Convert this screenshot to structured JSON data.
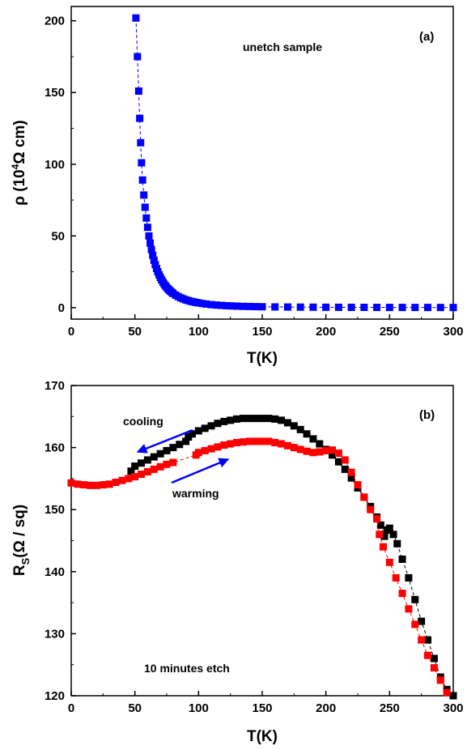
{
  "chart_data": [
    {
      "type": "scatter",
      "panel_label": "(a)",
      "xlabel": "T(K)",
      "ylabel": "ρ (10⁴Ω cm)",
      "ylabel_parts": {
        "prefix": "ρ (10",
        "sup": "4",
        "suffix": "Ω cm)"
      },
      "xlim": [
        0,
        300
      ],
      "ylim": [
        -8,
        210
      ],
      "xticks": [
        0,
        50,
        100,
        150,
        200,
        250,
        300
      ],
      "yticks": [
        0,
        50,
        100,
        150,
        200
      ],
      "grid": false,
      "annotations": [
        {
          "text": "unetch sample"
        }
      ],
      "series": [
        {
          "color": "#0000ff",
          "marker": "square",
          "x": [
            50.8,
            52,
            53,
            53.8,
            54.5,
            55.2,
            56,
            57,
            58,
            59,
            60,
            61,
            62,
            63,
            64,
            65,
            66,
            67,
            68,
            69,
            70,
            71,
            72,
            73,
            74,
            75,
            76,
            77,
            78,
            79,
            80,
            82,
            84,
            86,
            88,
            90,
            92,
            94,
            96,
            98,
            100,
            103,
            106,
            110,
            114,
            118,
            122,
            126,
            130,
            135,
            140,
            145,
            150,
            160,
            170,
            180,
            190,
            200,
            210,
            220,
            230,
            240,
            250,
            260,
            270,
            280,
            290,
            300
          ],
          "y": [
            202,
            175,
            151,
            132,
            115,
            101,
            89,
            78.5,
            70,
            62.5,
            56,
            50,
            45,
            40.5,
            36.5,
            33,
            30,
            27.3,
            25,
            22.9,
            21,
            19.3,
            17.8,
            16.4,
            15.2,
            14.1,
            13.1,
            12.2,
            11.4,
            10.6,
            9.9,
            8.7,
            7.7,
            6.8,
            6.1,
            5.4,
            4.9,
            4.4,
            4,
            3.6,
            3.3,
            2.9,
            2.5,
            2.1,
            1.8,
            1.55,
            1.35,
            1.2,
            1.05,
            0.9,
            0.8,
            0.7,
            0.62,
            0.5,
            0.42,
            0.36,
            0.31,
            0.27,
            0.24,
            0.21,
            0.19,
            0.17,
            0.15,
            0.14,
            0.13,
            0.12,
            0.11,
            0.1
          ]
        }
      ]
    },
    {
      "type": "scatter",
      "panel_label": "(b)",
      "xlabel": "T(K)",
      "ylabel": "RS(Ω / sq)",
      "ylabel_parts": {
        "prefix": "R",
        "sub": "S",
        "suffix": "(Ω / sq)"
      },
      "xlim": [
        0,
        300
      ],
      "ylim": [
        120,
        170
      ],
      "xticks": [
        0,
        50,
        100,
        150,
        200,
        250,
        300
      ],
      "yticks": [
        120,
        130,
        140,
        150,
        160,
        170
      ],
      "grid": false,
      "annotations": [
        {
          "text": "cooling"
        },
        {
          "text": "warming"
        },
        {
          "text": "10 minutes etch"
        }
      ],
      "series": [
        {
          "name": "cooling",
          "color": "#000000",
          "marker": "square",
          "x": [
            47,
            50,
            55,
            60,
            65,
            70,
            75,
            80,
            85,
            90,
            92,
            95,
            100,
            105,
            110,
            115,
            120,
            125,
            130,
            135,
            140,
            145,
            150,
            155,
            160,
            165,
            170,
            175,
            180,
            185,
            190,
            195,
            200,
            205,
            210,
            215,
            220,
            225,
            230,
            235,
            240,
            243,
            246,
            248,
            250,
            253,
            256,
            260,
            265,
            270,
            275,
            280,
            285,
            290,
            295,
            300
          ],
          "y": [
            156.2,
            157,
            157.5,
            158,
            158.5,
            159,
            159.5,
            160,
            160.5,
            161,
            161.7,
            162.2,
            162.7,
            163.1,
            163.5,
            163.9,
            164.2,
            164.4,
            164.6,
            164.7,
            164.7,
            164.7,
            164.7,
            164.7,
            164.6,
            164.4,
            164,
            163.5,
            162.9,
            162.2,
            161.4,
            160.6,
            159.7,
            158.8,
            157.7,
            156.5,
            155.1,
            153.5,
            152,
            150.5,
            148.8,
            147.5,
            145.7,
            146.7,
            147,
            146,
            144.5,
            142,
            139,
            135.5,
            132,
            129,
            126,
            123,
            121,
            120
          ]
        },
        {
          "name": "warming",
          "color": "#ff0000",
          "marker": "square",
          "x": [
            0,
            5,
            10,
            15,
            20,
            25,
            30,
            35,
            40,
            45,
            50,
            55,
            60,
            65,
            70,
            75,
            80,
            98,
            100,
            105,
            110,
            115,
            120,
            125,
            130,
            135,
            140,
            145,
            150,
            155,
            160,
            165,
            170,
            175,
            180,
            185,
            190,
            195,
            200,
            205,
            210,
            215,
            220,
            225,
            230,
            235,
            240,
            242,
            245,
            250,
            255,
            260,
            265,
            270,
            275,
            280,
            285,
            290,
            295
          ],
          "y": [
            154.3,
            154.1,
            154,
            153.9,
            153.9,
            154,
            154.1,
            154.4,
            154.7,
            155,
            155.3,
            155.7,
            156.1,
            156.5,
            156.9,
            157.3,
            157.6,
            158.8,
            159.2,
            159.5,
            159.8,
            160.1,
            160.4,
            160.6,
            160.8,
            160.9,
            161,
            161,
            161,
            161,
            160.8,
            160.6,
            160.3,
            160,
            159.7,
            159.4,
            159.2,
            159.3,
            159.5,
            159.6,
            159.1,
            158,
            156,
            154,
            152,
            150,
            148.5,
            146,
            144,
            141.5,
            139,
            136.5,
            134,
            131.5,
            129,
            126.5,
            124.5,
            122.5,
            120.5
          ]
        }
      ]
    }
  ]
}
